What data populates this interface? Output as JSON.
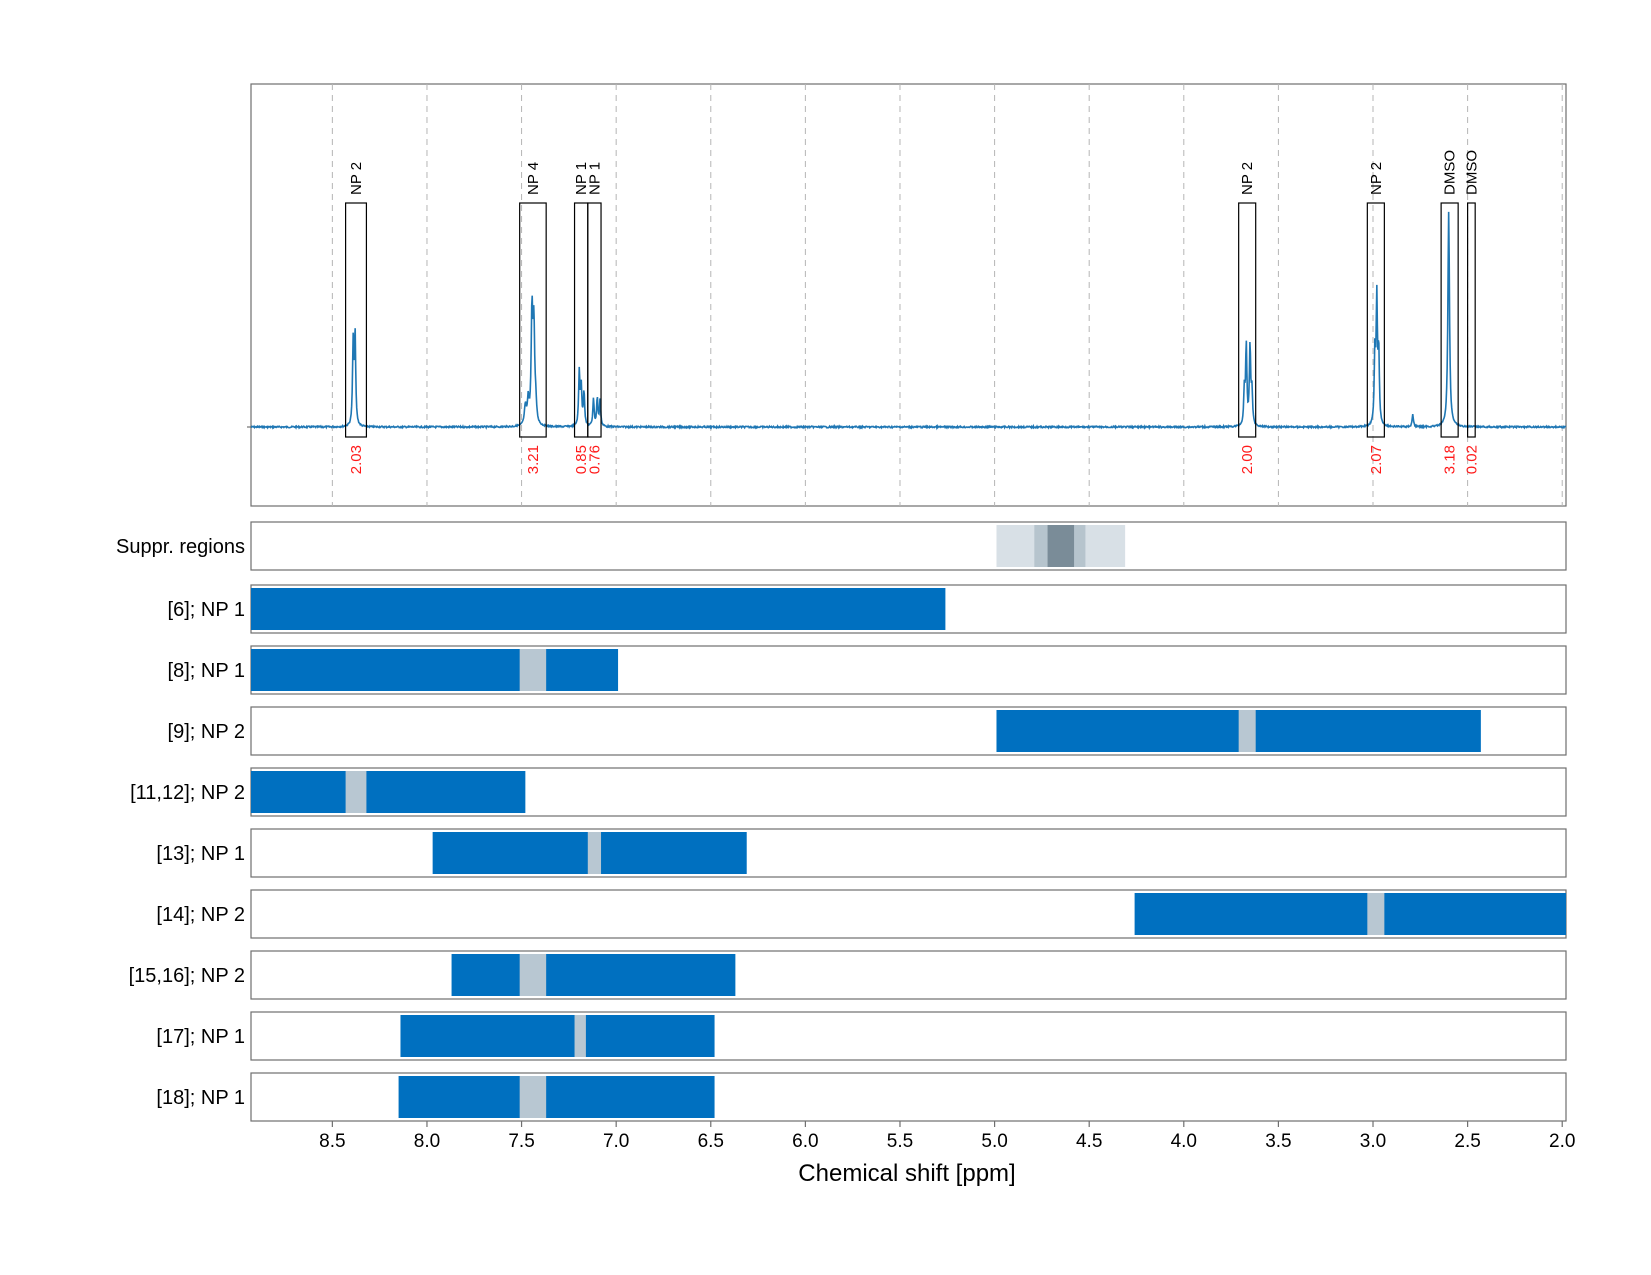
{
  "chart_data": {
    "type": "nmr-spectrum-with-range-bars",
    "xlabel": "Chemical shift [ppm]",
    "x_direction": "reversed",
    "xlim": [
      8.93,
      1.98
    ],
    "x_ticks": [
      8.5,
      8.0,
      7.5,
      7.0,
      6.5,
      6.0,
      5.5,
      5.0,
      4.5,
      4.0,
      3.5,
      3.0,
      2.5,
      2.0
    ],
    "x_tick_labels": [
      "8.5",
      "8.0",
      "7.5",
      "7.0",
      "6.5",
      "6.0",
      "5.5",
      "5.0",
      "4.5",
      "4.0",
      "3.5",
      "3.0",
      "2.5",
      "2.0"
    ],
    "grid": "vertical dashed",
    "colors": {
      "spectrum": "#1f77b4",
      "range_bar": "#0070c0",
      "multiplet_gap": "#b8c7d2",
      "integral_text": "#ff1a1a",
      "suppr_light": "#d8e0e6",
      "suppr_mid": "#b6c4cd",
      "suppr_dark": "#7a8c98"
    },
    "spectrum": {
      "baseline": 0,
      "peaks": [
        {
          "center": 8.38,
          "height": 0.42,
          "width": 0.004
        },
        {
          "center": 8.39,
          "height": 0.38,
          "width": 0.004
        },
        {
          "center": 7.445,
          "height": 0.52,
          "width": 0.005
        },
        {
          "center": 7.435,
          "height": 0.44,
          "width": 0.005
        },
        {
          "center": 7.48,
          "height": 0.09,
          "width": 0.006
        },
        {
          "center": 7.465,
          "height": 0.11,
          "width": 0.005
        },
        {
          "center": 7.425,
          "height": 0.08,
          "width": 0.005
        },
        {
          "center": 7.195,
          "height": 0.25,
          "width": 0.004
        },
        {
          "center": 7.185,
          "height": 0.18,
          "width": 0.004
        },
        {
          "center": 7.17,
          "height": 0.16,
          "width": 0.004
        },
        {
          "center": 7.12,
          "height": 0.13,
          "width": 0.004
        },
        {
          "center": 7.1,
          "height": 0.13,
          "width": 0.004
        },
        {
          "center": 7.085,
          "height": 0.12,
          "width": 0.004
        },
        {
          "center": 3.67,
          "height": 0.37,
          "width": 0.004
        },
        {
          "center": 3.65,
          "height": 0.37,
          "width": 0.004
        },
        {
          "center": 3.68,
          "height": 0.16,
          "width": 0.004
        },
        {
          "center": 3.64,
          "height": 0.16,
          "width": 0.004
        },
        {
          "center": 2.98,
          "height": 0.57,
          "width": 0.004
        },
        {
          "center": 2.99,
          "height": 0.33,
          "width": 0.004
        },
        {
          "center": 2.97,
          "height": 0.33,
          "width": 0.004
        },
        {
          "center": 2.79,
          "height": 0.06,
          "width": 0.004
        },
        {
          "center": 2.6,
          "height": 1.0,
          "width": 0.005
        }
      ]
    },
    "peak_regions": [
      {
        "label": "NP 2",
        "ppm_start": 8.43,
        "ppm_end": 8.32,
        "integral": "2.03"
      },
      {
        "label": "NP 4",
        "ppm_start": 7.51,
        "ppm_end": 7.37,
        "integral": "3.21"
      },
      {
        "label": "NP 1",
        "ppm_start": 7.22,
        "ppm_end": 7.15,
        "integral": "0.85"
      },
      {
        "label": "NP 1",
        "ppm_start": 7.15,
        "ppm_end": 7.08,
        "integral": "0.76"
      },
      {
        "label": "NP 2",
        "ppm_start": 3.71,
        "ppm_end": 3.62,
        "integral": "2.00"
      },
      {
        "label": "NP 2",
        "ppm_start": 3.03,
        "ppm_end": 2.94,
        "integral": "2.07"
      },
      {
        "label": "DMSO",
        "ppm_start": 2.64,
        "ppm_end": 2.55,
        "integral": "3.18"
      },
      {
        "label": "DMSO",
        "ppm_start": 2.5,
        "ppm_end": 2.46,
        "integral": "0.02"
      }
    ],
    "suppressed_regions": {
      "label": "Suppr. regions",
      "segments": [
        {
          "ppm_start": 4.99,
          "ppm_end": 4.31,
          "level": "light"
        },
        {
          "ppm_start": 4.79,
          "ppm_end": 4.52,
          "level": "mid"
        },
        {
          "ppm_start": 4.72,
          "ppm_end": 4.58,
          "level": "dark"
        }
      ]
    },
    "range_rows": [
      {
        "label": "[6]; NP 1",
        "bars": [
          [
            8.93,
            5.26
          ]
        ],
        "gaps": []
      },
      {
        "label": "[8]; NP 1",
        "bars": [
          [
            8.93,
            6.99
          ]
        ],
        "gaps": [
          [
            7.51,
            7.37
          ]
        ]
      },
      {
        "label": "[9]; NP 2",
        "bars": [
          [
            4.99,
            2.43
          ]
        ],
        "gaps": [
          [
            3.71,
            3.62
          ]
        ]
      },
      {
        "label": "[11,12]; NP 2",
        "bars": [
          [
            8.93,
            7.48
          ]
        ],
        "gaps": [
          [
            8.43,
            8.32
          ]
        ]
      },
      {
        "label": "[13]; NP 1",
        "bars": [
          [
            7.97,
            6.31
          ]
        ],
        "gaps": [
          [
            7.15,
            7.08
          ]
        ]
      },
      {
        "label": "[14]; NP 2",
        "bars": [
          [
            4.26,
            1.98
          ]
        ],
        "gaps": [
          [
            3.03,
            2.94
          ]
        ]
      },
      {
        "label": "[15,16]; NP 2",
        "bars": [
          [
            7.87,
            6.37
          ]
        ],
        "gaps": [
          [
            7.51,
            7.37
          ]
        ]
      },
      {
        "label": "[17]; NP 1",
        "bars": [
          [
            8.14,
            6.48
          ]
        ],
        "gaps": [
          [
            7.22,
            7.16
          ]
        ]
      },
      {
        "label": "[18]; NP 1",
        "bars": [
          [
            8.15,
            6.48
          ]
        ],
        "gaps": [
          [
            7.51,
            7.37
          ]
        ]
      }
    ]
  }
}
